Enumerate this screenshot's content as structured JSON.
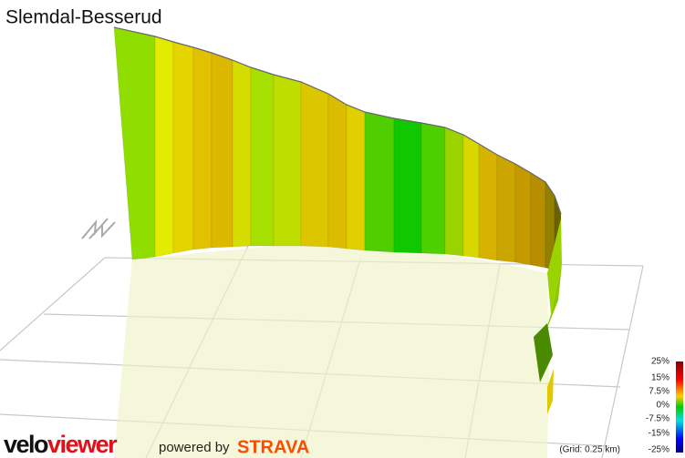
{
  "title": "Slemdal-Besserud",
  "scale_labels": [
    "25%",
    "15%",
    "7.5%",
    "0%",
    "-7.5%",
    "-15%",
    "-25%"
  ],
  "grid_note": "(Grid: 0.25 km)",
  "logo": {
    "part1": "velo",
    "part2": "viewer",
    "powered": "powered by",
    "strava": "STRAVA"
  }
}
